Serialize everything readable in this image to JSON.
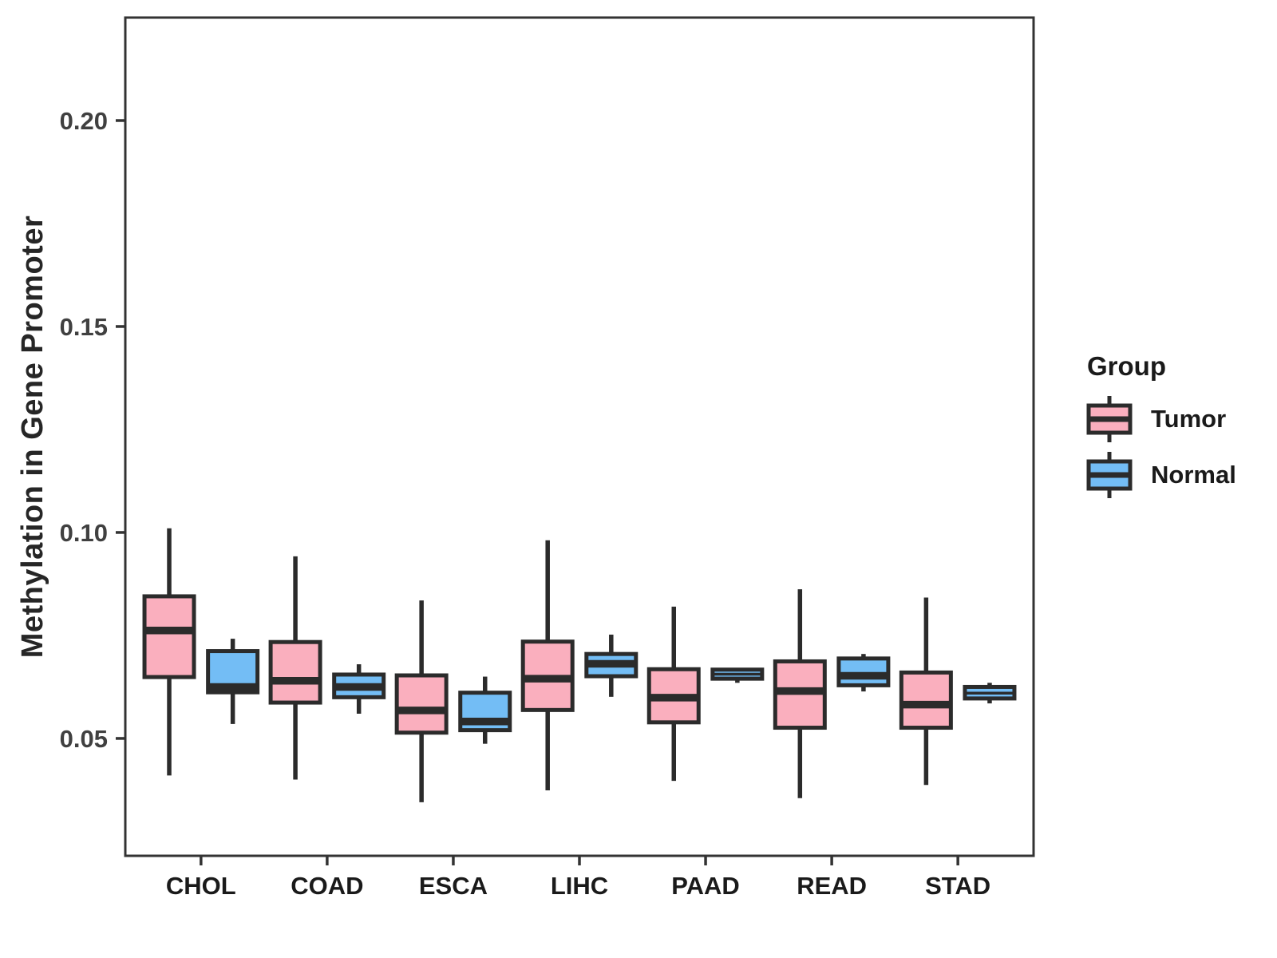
{
  "chart_data": {
    "type": "boxplot",
    "title": "",
    "xlabel": "",
    "ylabel": "Methylation in Gene Promoter",
    "legend_title": "Group",
    "legend_position": "right",
    "grid": false,
    "categories": [
      "CHOL",
      "COAD",
      "ESCA",
      "LIHC",
      "PAAD",
      "READ",
      "STAD"
    ],
    "ylim": [
      0.0215,
      0.225
    ],
    "yticks": [
      0.05,
      0.1,
      0.15,
      0.2
    ],
    "ytick_labels": [
      "0.05",
      "0.10",
      "0.15",
      "0.20"
    ],
    "colors": {
      "tumor_fill": "#FAAFBE",
      "normal_fill": "#73BDF5",
      "box_border": "#2B2B2B",
      "axis": "#333333",
      "tick_text": "#404040",
      "label_text": "#1A1A1A"
    },
    "series": [
      {
        "name": "Tumor",
        "color": "#FAAFBE",
        "boxes": [
          {
            "category": "CHOL",
            "low": 0.041,
            "q1": 0.0649,
            "median": 0.0762,
            "q3": 0.0845,
            "high": 0.101
          },
          {
            "category": "COAD",
            "low": 0.04,
            "q1": 0.0587,
            "median": 0.064,
            "q3": 0.0734,
            "high": 0.0942
          },
          {
            "category": "ESCA",
            "low": 0.0345,
            "q1": 0.0514,
            "median": 0.0568,
            "q3": 0.0653,
            "high": 0.0835
          },
          {
            "category": "LIHC",
            "low": 0.0374,
            "q1": 0.0569,
            "median": 0.0645,
            "q3": 0.0735,
            "high": 0.0981
          },
          {
            "category": "PAAD",
            "low": 0.0397,
            "q1": 0.0539,
            "median": 0.0599,
            "q3": 0.0668,
            "high": 0.082
          },
          {
            "category": "READ",
            "low": 0.0355,
            "q1": 0.0526,
            "median": 0.0615,
            "q3": 0.0687,
            "high": 0.0862
          },
          {
            "category": "STAD",
            "low": 0.0387,
            "q1": 0.0526,
            "median": 0.0582,
            "q3": 0.066,
            "high": 0.0842
          }
        ]
      },
      {
        "name": "Normal",
        "color": "#73BDF5",
        "boxes": [
          {
            "category": "CHOL",
            "low": 0.0535,
            "q1": 0.0612,
            "median": 0.0625,
            "q3": 0.0712,
            "high": 0.0742
          },
          {
            "category": "COAD",
            "low": 0.056,
            "q1": 0.06,
            "median": 0.0625,
            "q3": 0.0655,
            "high": 0.068
          },
          {
            "category": "ESCA",
            "low": 0.0487,
            "q1": 0.052,
            "median": 0.0541,
            "q3": 0.0611,
            "high": 0.065
          },
          {
            "category": "LIHC",
            "low": 0.0601,
            "q1": 0.0651,
            "median": 0.0681,
            "q3": 0.0705,
            "high": 0.0752
          },
          {
            "category": "PAAD",
            "low": 0.0635,
            "q1": 0.0645,
            "median": 0.0656,
            "q3": 0.0667,
            "high": 0.067
          },
          {
            "category": "READ",
            "low": 0.0614,
            "q1": 0.0629,
            "median": 0.0652,
            "q3": 0.0694,
            "high": 0.0705
          },
          {
            "category": "STAD",
            "low": 0.0585,
            "q1": 0.0597,
            "median": 0.061,
            "q3": 0.0625,
            "high": 0.0635
          }
        ]
      }
    ]
  }
}
